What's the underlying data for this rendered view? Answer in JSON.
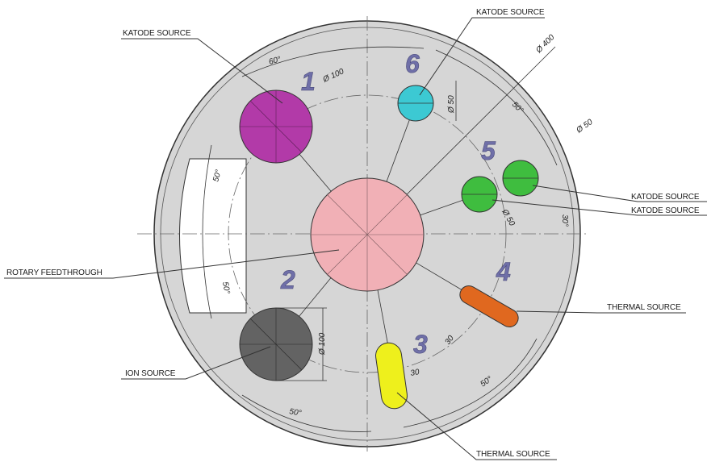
{
  "labels": {
    "katode_top_left": "KATODE SOURCE",
    "katode_top": "KATODE SOURCE",
    "katode_right_1": "KATODE SOURCE",
    "katode_right_2": "KATODE SOURCE",
    "rotary": "ROTARY FEEDTHROUGH",
    "ion": "ION SOURCE",
    "thermal_right": "THERMAL SOURCE",
    "thermal_bottom": "THERMAL SOURCE"
  },
  "numbers": {
    "n1": "1",
    "n2": "2",
    "n3": "3",
    "n4": "4",
    "n5": "5",
    "n6": "6"
  },
  "dimensions": {
    "d100_top": "Ø 100",
    "d400": "Ø 400",
    "d50_6": "Ø 50",
    "d50_5a": "Ø 50",
    "d50_5b": "Ø 50",
    "d100_ion": "Ø 100",
    "a60": "60°",
    "a50_top": "50°",
    "a30_right": "30°",
    "a50_left": "50°",
    "a50_left2": "50°",
    "a50_bottom_left": "50°",
    "a50_bottom_right": "50°",
    "l30_3": "30",
    "l30_4": "30"
  },
  "colors": {
    "plate": "#d6d6d6",
    "source_1": "#b23aa8",
    "source_6": "#3cc9d3",
    "source_5": "#3fbd3f",
    "center_hub": "#f1b0b6",
    "ion": "#636363",
    "thermal_3": "#eef01c",
    "thermal_4": "#e0681f"
  }
}
